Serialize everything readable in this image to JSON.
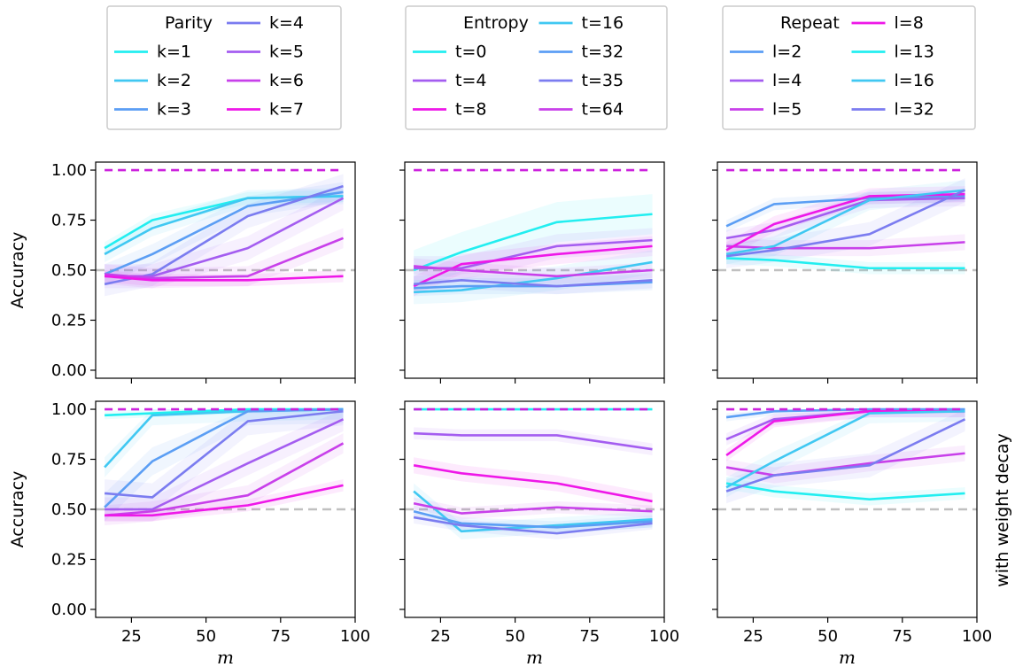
{
  "side_label": "with weight decay",
  "colors": {
    "baseline": "#c0c0c0",
    "upper": "#cc22dd"
  },
  "chart_data": [
    {
      "type": "line",
      "group": "Parity",
      "row": 0,
      "ylabel": "Accuracy",
      "xlabel": "",
      "xlim": [
        13,
        100
      ],
      "ylim": [
        -0.04,
        1.04
      ],
      "xticks": [
        25,
        50,
        75,
        100
      ],
      "yticks": [
        0.0,
        0.25,
        0.5,
        0.75,
        1.0
      ],
      "x": [
        16,
        32,
        64,
        96
      ],
      "series": [
        {
          "name": "k=1",
          "color": "#22eef0",
          "values": [
            0.61,
            0.75,
            0.86,
            0.87
          ],
          "band": 0.03
        },
        {
          "name": "k=2",
          "color": "#40c8f2",
          "values": [
            0.58,
            0.71,
            0.86,
            0.87
          ],
          "band": 0.04
        },
        {
          "name": "k=3",
          "color": "#5b9ef4",
          "values": [
            0.48,
            0.58,
            0.82,
            0.89
          ],
          "band": 0.05
        },
        {
          "name": "k=4",
          "color": "#7b7cf0",
          "values": [
            0.43,
            0.48,
            0.77,
            0.92
          ],
          "band": 0.06
        },
        {
          "name": "k=5",
          "color": "#a45df0",
          "values": [
            0.47,
            0.47,
            0.61,
            0.86
          ],
          "band": 0.06
        },
        {
          "name": "k=6",
          "color": "#c840ea",
          "values": [
            0.48,
            0.46,
            0.47,
            0.66
          ],
          "band": 0.05
        },
        {
          "name": "k=7",
          "color": "#ee18e8",
          "values": [
            0.47,
            0.45,
            0.45,
            0.47
          ],
          "band": 0.03
        }
      ]
    },
    {
      "type": "line",
      "group": "Entropy",
      "row": 0,
      "ylabel": "",
      "xlabel": "",
      "xlim": [
        13,
        100
      ],
      "ylim": [
        -0.04,
        1.04
      ],
      "xticks": [
        25,
        50,
        75,
        100
      ],
      "yticks": [
        0.0,
        0.25,
        0.5,
        0.75,
        1.0
      ],
      "x": [
        16,
        32,
        64,
        96
      ],
      "series": [
        {
          "name": "t=0",
          "color": "#22eef0",
          "values": [
            0.5,
            0.59,
            0.74,
            0.78
          ],
          "band": 0.1
        },
        {
          "name": "t=4",
          "color": "#a45df0",
          "values": [
            0.51,
            0.51,
            0.62,
            0.65
          ],
          "band": 0.06
        },
        {
          "name": "t=8",
          "color": "#ee18e8",
          "values": [
            0.42,
            0.53,
            0.58,
            0.62
          ],
          "band": 0.05
        },
        {
          "name": "t=16",
          "color": "#40c8f2",
          "values": [
            0.39,
            0.4,
            0.46,
            0.54
          ],
          "band": 0.06
        },
        {
          "name": "t=32",
          "color": "#5b9ef4",
          "values": [
            0.41,
            0.42,
            0.42,
            0.44
          ],
          "band": 0.04
        },
        {
          "name": "t=35",
          "color": "#7b7cf0",
          "values": [
            0.43,
            0.45,
            0.42,
            0.45
          ],
          "band": 0.04
        },
        {
          "name": "t=64",
          "color": "#c840ea",
          "values": [
            0.52,
            0.5,
            0.47,
            0.5
          ],
          "band": 0.04
        }
      ]
    },
    {
      "type": "line",
      "group": "Repeat",
      "row": 0,
      "ylabel": "",
      "xlabel": "",
      "xlim": [
        13,
        100
      ],
      "ylim": [
        -0.04,
        1.04
      ],
      "xticks": [
        25,
        50,
        75,
        100
      ],
      "yticks": [
        0.0,
        0.25,
        0.5,
        0.75,
        1.0
      ],
      "x": [
        16,
        32,
        64,
        96
      ],
      "series": [
        {
          "name": "l=2",
          "color": "#5b9ef4",
          "values": [
            0.72,
            0.83,
            0.86,
            0.87
          ],
          "band": 0.03
        },
        {
          "name": "l=4",
          "color": "#a45df0",
          "values": [
            0.66,
            0.7,
            0.85,
            0.86
          ],
          "band": 0.04
        },
        {
          "name": "l=5",
          "color": "#c840ea",
          "values": [
            0.62,
            0.61,
            0.61,
            0.64
          ],
          "band": 0.04
        },
        {
          "name": "l=8",
          "color": "#ee18e8",
          "values": [
            0.6,
            0.73,
            0.87,
            0.88
          ],
          "band": 0.04
        },
        {
          "name": "l=13",
          "color": "#22eef0",
          "values": [
            0.56,
            0.55,
            0.51,
            0.51
          ],
          "band": 0.03
        },
        {
          "name": "l=16",
          "color": "#40c8f2",
          "values": [
            0.58,
            0.62,
            0.85,
            0.9
          ],
          "band": 0.05
        },
        {
          "name": "l=32",
          "color": "#7b7cf0",
          "values": [
            0.57,
            0.6,
            0.68,
            0.9
          ],
          "band": 0.06
        }
      ]
    },
    {
      "type": "line",
      "group": "Parity",
      "row": 1,
      "ylabel": "Accuracy",
      "xlabel": "m",
      "xlim": [
        13,
        100
      ],
      "ylim": [
        -0.04,
        1.04
      ],
      "xticks": [
        25,
        50,
        75,
        100
      ],
      "yticks": [
        0.0,
        0.25,
        0.5,
        0.75,
        1.0
      ],
      "x": [
        16,
        32,
        64,
        96
      ],
      "series": [
        {
          "name": "k=1",
          "color": "#22eef0",
          "values": [
            0.97,
            0.98,
            1.0,
            1.0
          ],
          "band": 0.02
        },
        {
          "name": "k=2",
          "color": "#40c8f2",
          "values": [
            0.71,
            0.97,
            0.99,
            1.0
          ],
          "band": 0.05
        },
        {
          "name": "k=3",
          "color": "#5b9ef4",
          "values": [
            0.51,
            0.74,
            0.99,
            1.0
          ],
          "band": 0.07
        },
        {
          "name": "k=4",
          "color": "#7b7cf0",
          "values": [
            0.58,
            0.56,
            0.94,
            0.99
          ],
          "band": 0.07
        },
        {
          "name": "k=5",
          "color": "#a45df0",
          "values": [
            0.5,
            0.5,
            0.73,
            0.95
          ],
          "band": 0.06
        },
        {
          "name": "k=6",
          "color": "#c840ea",
          "values": [
            0.47,
            0.49,
            0.57,
            0.83
          ],
          "band": 0.05
        },
        {
          "name": "k=7",
          "color": "#ee18e8",
          "values": [
            0.47,
            0.47,
            0.52,
            0.62
          ],
          "band": 0.03
        }
      ]
    },
    {
      "type": "line",
      "group": "Entropy",
      "row": 1,
      "ylabel": "",
      "xlabel": "m",
      "xlim": [
        13,
        100
      ],
      "ylim": [
        -0.04,
        1.04
      ],
      "xticks": [
        25,
        50,
        75,
        100
      ],
      "yticks": [
        0.0,
        0.25,
        0.5,
        0.75,
        1.0
      ],
      "x": [
        16,
        32,
        64,
        96
      ],
      "series": [
        {
          "name": "t=0",
          "color": "#22eef0",
          "values": [
            1.0,
            1.0,
            1.0,
            1.0
          ],
          "band": 0.0
        },
        {
          "name": "t=4",
          "color": "#a45df0",
          "values": [
            0.88,
            0.87,
            0.87,
            0.8
          ],
          "band": 0.03
        },
        {
          "name": "t=8",
          "color": "#ee18e8",
          "values": [
            0.72,
            0.68,
            0.63,
            0.54
          ],
          "band": 0.04
        },
        {
          "name": "t=16",
          "color": "#40c8f2",
          "values": [
            0.59,
            0.39,
            0.42,
            0.45
          ],
          "band": 0.04
        },
        {
          "name": "t=32",
          "color": "#5b9ef4",
          "values": [
            0.49,
            0.43,
            0.41,
            0.44
          ],
          "band": 0.03
        },
        {
          "name": "t=35",
          "color": "#7b7cf0",
          "values": [
            0.46,
            0.42,
            0.38,
            0.43
          ],
          "band": 0.03
        },
        {
          "name": "t=64",
          "color": "#c840ea",
          "values": [
            0.53,
            0.48,
            0.51,
            0.49
          ],
          "band": 0.03
        }
      ]
    },
    {
      "type": "line",
      "group": "Repeat",
      "row": 1,
      "ylabel": "",
      "xlabel": "m",
      "xlim": [
        13,
        100
      ],
      "ylim": [
        -0.04,
        1.04
      ],
      "xticks": [
        25,
        50,
        75,
        100
      ],
      "yticks": [
        0.0,
        0.25,
        0.5,
        0.75,
        1.0
      ],
      "x": [
        16,
        32,
        64,
        96
      ],
      "series": [
        {
          "name": "l=2",
          "color": "#5b9ef4",
          "values": [
            0.96,
            0.99,
            1.0,
            1.0
          ],
          "band": 0.02
        },
        {
          "name": "l=4",
          "color": "#a45df0",
          "values": [
            0.85,
            0.95,
            0.99,
            0.99
          ],
          "band": 0.03
        },
        {
          "name": "l=5",
          "color": "#c840ea",
          "values": [
            0.71,
            0.67,
            0.73,
            0.78
          ],
          "band": 0.04
        },
        {
          "name": "l=8",
          "color": "#ee18e8",
          "values": [
            0.77,
            0.94,
            0.99,
            0.99
          ],
          "band": 0.03
        },
        {
          "name": "l=13",
          "color": "#22eef0",
          "values": [
            0.63,
            0.59,
            0.55,
            0.58
          ],
          "band": 0.03
        },
        {
          "name": "l=16",
          "color": "#40c8f2",
          "values": [
            0.61,
            0.74,
            0.98,
            0.99
          ],
          "band": 0.05
        },
        {
          "name": "l=32",
          "color": "#7b7cf0",
          "values": [
            0.59,
            0.67,
            0.72,
            0.95
          ],
          "band": 0.06
        }
      ]
    }
  ],
  "legends": [
    {
      "title": "Parity",
      "items": [
        "k=1",
        "k=2",
        "k=3",
        "k=4",
        "k=5",
        "k=6",
        "k=7"
      ],
      "colors": [
        "#22eef0",
        "#40c8f2",
        "#5b9ef4",
        "#7b7cf0",
        "#a45df0",
        "#c840ea",
        "#ee18e8"
      ]
    },
    {
      "title": "Entropy",
      "items": [
        "t=0",
        "t=4",
        "t=8",
        "t=16",
        "t=32",
        "t=35",
        "t=64"
      ],
      "colors": [
        "#22eef0",
        "#a45df0",
        "#ee18e8",
        "#40c8f2",
        "#5b9ef4",
        "#7b7cf0",
        "#c840ea"
      ]
    },
    {
      "title": "Repeat",
      "items": [
        "l=2",
        "l=4",
        "l=5",
        "l=8",
        "l=13",
        "l=16",
        "l=32"
      ],
      "colors": [
        "#5b9ef4",
        "#a45df0",
        "#c840ea",
        "#ee18e8",
        "#22eef0",
        "#40c8f2",
        "#7b7cf0"
      ]
    }
  ]
}
